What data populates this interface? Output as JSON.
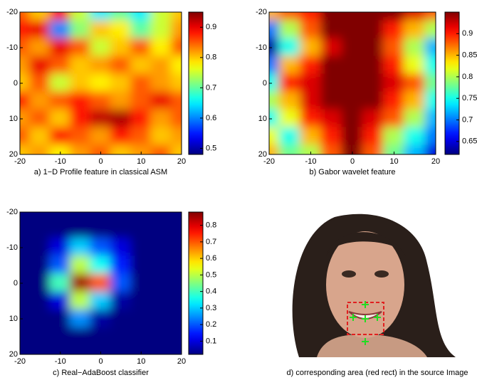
{
  "chart_data": [
    {
      "type": "heatmap",
      "caption": "a) 1−D Profile feature in classical ASM",
      "x": [
        -20,
        -15,
        -10,
        -5,
        0,
        5,
        10,
        15,
        20
      ],
      "y": [
        -20,
        -15,
        -10,
        -5,
        0,
        5,
        10,
        15,
        20
      ],
      "z": [
        [
          0.85,
          0.8,
          0.88,
          0.75,
          0.65,
          0.7,
          0.65,
          0.75,
          0.8
        ],
        [
          0.88,
          0.9,
          0.6,
          0.72,
          0.8,
          0.78,
          0.7,
          0.75,
          0.82
        ],
        [
          0.85,
          0.82,
          0.9,
          0.85,
          0.75,
          0.8,
          0.85,
          0.78,
          0.85
        ],
        [
          0.82,
          0.9,
          0.85,
          0.8,
          0.82,
          0.85,
          0.8,
          0.82,
          0.78
        ],
        [
          0.8,
          0.85,
          0.75,
          0.8,
          0.78,
          0.8,
          0.85,
          0.82,
          0.8
        ],
        [
          0.88,
          0.82,
          0.85,
          0.88,
          0.85,
          0.82,
          0.85,
          0.9,
          0.85
        ],
        [
          0.82,
          0.85,
          0.8,
          0.88,
          0.92,
          0.93,
          0.88,
          0.82,
          0.85
        ],
        [
          0.85,
          0.8,
          0.88,
          0.85,
          0.82,
          0.88,
          0.85,
          0.8,
          0.82
        ],
        [
          0.8,
          0.82,
          0.78,
          0.82,
          0.85,
          0.8,
          0.82,
          0.85,
          0.8
        ]
      ],
      "xlim": [
        -20,
        20
      ],
      "ylim": [
        20,
        -20
      ],
      "xticks": [
        -20,
        -10,
        0,
        10,
        20
      ],
      "yticks": [
        -20,
        -10,
        0,
        10,
        20
      ],
      "colormap": "jet",
      "clim": [
        0.48,
        0.95
      ],
      "cticks": [
        0.5,
        0.6,
        0.7,
        0.8,
        0.9
      ]
    },
    {
      "type": "heatmap",
      "caption": "b) Gabor wavelet feature",
      "x": [
        -20,
        -15,
        -10,
        -5,
        0,
        5,
        10,
        15,
        20
      ],
      "y": [
        -20,
        -15,
        -10,
        -5,
        0,
        5,
        10,
        15,
        20
      ],
      "z": [
        [
          0.85,
          0.88,
          0.9,
          0.95,
          0.95,
          0.95,
          0.95,
          0.92,
          0.88
        ],
        [
          0.7,
          0.8,
          0.88,
          0.95,
          0.95,
          0.95,
          0.9,
          0.85,
          0.8
        ],
        [
          0.63,
          0.75,
          0.85,
          0.92,
          0.95,
          0.95,
          0.88,
          0.8,
          0.72
        ],
        [
          0.7,
          0.85,
          0.9,
          0.95,
          0.95,
          0.95,
          0.9,
          0.82,
          0.75
        ],
        [
          0.75,
          0.9,
          0.92,
          0.95,
          0.95,
          0.95,
          0.92,
          0.88,
          0.78
        ],
        [
          0.8,
          0.85,
          0.92,
          0.95,
          0.95,
          0.95,
          0.9,
          0.85,
          0.75
        ],
        [
          0.75,
          0.82,
          0.9,
          0.92,
          0.95,
          0.92,
          0.88,
          0.8,
          0.72
        ],
        [
          0.82,
          0.75,
          0.85,
          0.9,
          0.95,
          0.9,
          0.8,
          0.75,
          0.7
        ],
        [
          0.85,
          0.78,
          0.8,
          0.88,
          0.95,
          0.88,
          0.78,
          0.72,
          0.65
        ]
      ],
      "xlim": [
        -20,
        20
      ],
      "ylim": [
        20,
        -20
      ],
      "xticks": [
        -20,
        -10,
        0,
        10,
        20
      ],
      "yticks": [
        -20,
        -10,
        0,
        10,
        20
      ],
      "colormap": "jet",
      "clim": [
        0.62,
        0.95
      ],
      "cticks": [
        0.65,
        0.7,
        0.75,
        0.8,
        0.85,
        0.9
      ]
    },
    {
      "type": "heatmap",
      "caption": "c) Real−AdaBoost classifier",
      "x": [
        -20,
        -15,
        -10,
        -5,
        0,
        5,
        10,
        15,
        20
      ],
      "y": [
        -20,
        -15,
        -10,
        -5,
        0,
        5,
        10,
        15,
        20
      ],
      "z": [
        [
          0.02,
          0.02,
          0.02,
          0.02,
          0.02,
          0.02,
          0.02,
          0.02,
          0.02
        ],
        [
          0.02,
          0.02,
          0.02,
          0.02,
          0.02,
          0.02,
          0.02,
          0.02,
          0.02
        ],
        [
          0.02,
          0.02,
          0.1,
          0.3,
          0.2,
          0.1,
          0.02,
          0.02,
          0.02
        ],
        [
          0.02,
          0.02,
          0.2,
          0.5,
          0.35,
          0.15,
          0.02,
          0.02,
          0.02
        ],
        [
          0.02,
          0.02,
          0.4,
          0.85,
          0.7,
          0.2,
          0.02,
          0.02,
          0.02
        ],
        [
          0.02,
          0.02,
          0.1,
          0.5,
          0.3,
          0.05,
          0.02,
          0.02,
          0.02
        ],
        [
          0.02,
          0.02,
          0.02,
          0.25,
          0.05,
          0.02,
          0.02,
          0.02,
          0.02
        ],
        [
          0.02,
          0.02,
          0.02,
          0.02,
          0.02,
          0.02,
          0.02,
          0.02,
          0.02
        ],
        [
          0.02,
          0.02,
          0.02,
          0.02,
          0.02,
          0.02,
          0.02,
          0.02,
          0.02
        ]
      ],
      "xlim": [
        -20,
        20
      ],
      "ylim": [
        20,
        -20
      ],
      "xticks": [
        -20,
        -10,
        0,
        10,
        20
      ],
      "yticks": [
        -20,
        -10,
        0,
        10,
        20
      ],
      "colormap": "jet",
      "clim": [
        0.02,
        0.88
      ],
      "cticks": [
        0.1,
        0.2,
        0.3,
        0.4,
        0.5,
        0.6,
        0.7,
        0.8
      ]
    }
  ],
  "image_panel": {
    "caption": "d) corresponding area (red rect) in the source Image"
  }
}
